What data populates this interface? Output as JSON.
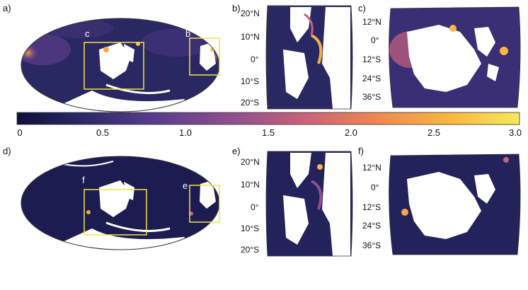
{
  "panels": {
    "a": {
      "label": "a)",
      "inset_labels": [
        "c",
        "b"
      ]
    },
    "b": {
      "label": "b)",
      "lat_ticks": [
        "20°N",
        "10°N",
        "0°",
        "10°S",
        "20°S"
      ]
    },
    "c": {
      "label": "c)",
      "lat_ticks": [
        "12°N",
        "0°",
        "12°S",
        "24°S",
        "36°S"
      ]
    },
    "d": {
      "label": "d)",
      "inset_labels": [
        "f",
        "e"
      ]
    },
    "e": {
      "label": "e)",
      "lat_ticks": [
        "20°N",
        "10°N",
        "0°",
        "10°S",
        "20°S"
      ]
    },
    "f": {
      "label": "f)",
      "lat_ticks": [
        "12°N",
        "0°",
        "12°S",
        "24°S",
        "36°S"
      ]
    }
  },
  "colorbar": {
    "ticks": [
      "0",
      "0.5",
      "1.0",
      "1.5",
      "2.0",
      "2.5",
      "3.0"
    ],
    "min": 0,
    "max": 3.0,
    "colors": [
      "#0f0f3a",
      "#2e2a6b",
      "#5b3d8c",
      "#8f4f8e",
      "#c8627a",
      "#ee8552",
      "#f9b640",
      "#f7e85a"
    ]
  },
  "colors": {
    "background": "#24245c",
    "land": "#ffffff",
    "inset_box": "#f2e34a"
  }
}
